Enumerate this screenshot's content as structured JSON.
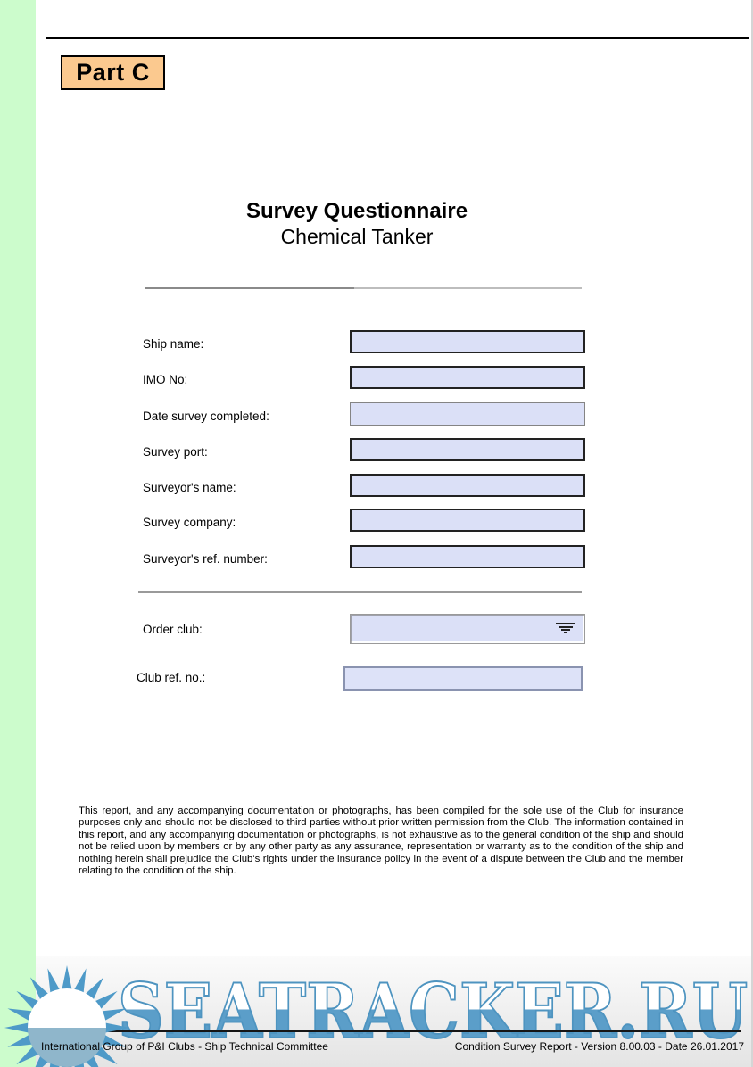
{
  "page": {
    "part_label": "Part C",
    "title": "Survey Questionnaire",
    "subtitle": "Chemical Tanker"
  },
  "form": {
    "fields": [
      {
        "label": "Ship name:",
        "value": ""
      },
      {
        "label": "IMO No:",
        "value": ""
      },
      {
        "label": "Date survey completed:",
        "value": ""
      },
      {
        "label": "Survey port:",
        "value": ""
      },
      {
        "label": "Surveyor's name:",
        "value": ""
      },
      {
        "label": "Survey company:",
        "value": ""
      },
      {
        "label": "Surveyor's ref. number:",
        "value": ""
      }
    ],
    "order_club": {
      "label": "Order club:",
      "value": ""
    },
    "club_ref": {
      "label": "Club ref. no.:",
      "value": ""
    }
  },
  "disclaimer": "This report, and any accompanying documentation or photographs, has been compiled for the sole use of the Club for insurance purposes only and should not be disclosed to third parties without prior written permission from the Club. The information contained in this report, and any accompanying documentation or photographs, is not exhaustive as to the general condition of the ship and should not be relied upon by members or by any other party as any assurance, representation or warranty as to the condition of the ship and nothing herein shall prejudice the Club's rights under the insurance policy in the event of a dispute between the Club and the member relating to the condition of the ship.",
  "footer": {
    "left": "International Group of P&I Clubs - Ship Technical Committee",
    "right": "Condition Survey Report - Version 8.00.03 - Date 26.01.2017"
  },
  "watermark": {
    "text": "SEATRACKER.RU"
  },
  "colors": {
    "accent_orange": "#fbc98f",
    "input_fill": "#dbe0f7",
    "watermark_blue": "#5b9ec9",
    "sun_disc_bottom": "#8fb6cb",
    "side_strip_green": "#ccfccc"
  }
}
